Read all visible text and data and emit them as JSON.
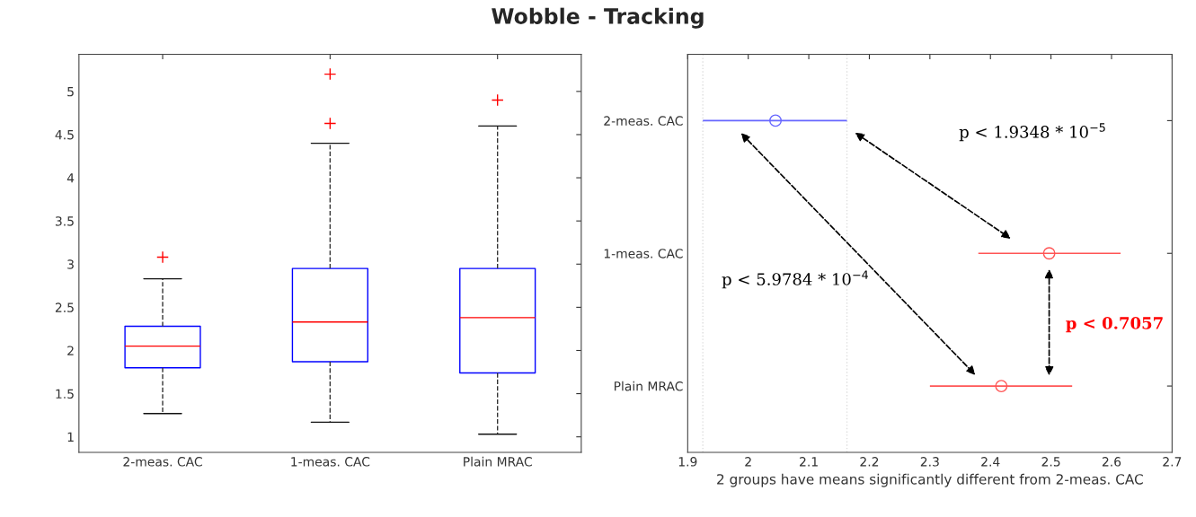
{
  "chart_data": [
    {
      "type": "box",
      "title": "Wobble - Tracking",
      "categories": [
        "2-meas. CAC",
        "1-meas. CAC",
        "Plain MRAC"
      ],
      "marker": "cross",
      "grid": false,
      "boxes": [
        {
          "low": 1.27,
          "q1": 1.8,
          "median": 2.05,
          "q3": 2.28,
          "high": 2.83,
          "outliers": [
            3.08
          ]
        },
        {
          "low": 1.17,
          "q1": 1.87,
          "median": 2.33,
          "q3": 2.95,
          "high": 4.4,
          "outliers": [
            4.63,
            5.2
          ]
        },
        {
          "low": 1.03,
          "q1": 1.74,
          "median": 2.38,
          "q3": 2.95,
          "high": 4.6,
          "outliers": [
            4.9
          ]
        }
      ],
      "ylim": [
        0.82,
        5.43
      ],
      "yticks": [
        1,
        1.5,
        2,
        2.5,
        3,
        3.5,
        4,
        4.5,
        5
      ]
    },
    {
      "type": "scatter",
      "orientation": "horizontal",
      "categories": [
        "2-meas. CAC",
        "1-meas. CAC",
        "Plain MRAC"
      ],
      "marker": "circle",
      "grid": false,
      "values": [
        2.045,
        2.497,
        2.418
      ],
      "errors": [
        [
          1.925,
          2.163
        ],
        [
          2.38,
          2.615
        ],
        [
          2.3,
          2.535
        ]
      ],
      "colors": [
        "#6666ff",
        "#ff5555",
        "#ff5555"
      ],
      "xlabel": "2 groups have means significantly different from 2-meas. CAC",
      "xlim": [
        1.9,
        2.7
      ],
      "xticks": [
        1.9,
        2,
        2.1,
        2.2,
        2.3,
        2.4,
        2.5,
        2.6,
        2.7
      ],
      "ref_lines": [
        {
          "axis": "x",
          "value": 1.925,
          "color": "#dddddd",
          "line_style": "dotted"
        },
        {
          "axis": "x",
          "value": 2.163,
          "color": "#dddddd",
          "line_style": "dotted"
        }
      ],
      "annotations": [
        "p < 1.9348 * 10$^{−5}$",
        "p < 5.9784 * 10$^{−4}$",
        "p < 0.7057"
      ]
    }
  ]
}
